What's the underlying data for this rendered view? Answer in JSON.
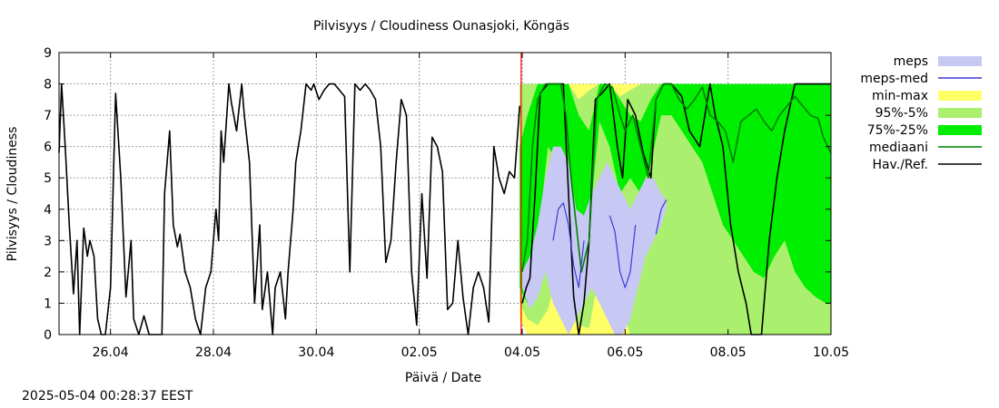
{
  "timestamp": "2025-05-04 00:28:37 EEST",
  "chart_data": {
    "type": "line",
    "title": "Pilvisyys / Cloudiness Ounasjoki, Köngäs",
    "xlabel": "Päivä / Date",
    "ylabel": "Pilvisyys / Cloudiness",
    "xlim": [
      0,
      15
    ],
    "ylim": [
      0,
      9
    ],
    "x_unit": "days since 2025-04-25 00:00",
    "grid": true,
    "legend_position": "right",
    "x_ticks": [
      {
        "x": 1,
        "label": "26.04"
      },
      {
        "x": 3,
        "label": "28.04"
      },
      {
        "x": 5,
        "label": "30.04"
      },
      {
        "x": 7,
        "label": "02.05"
      },
      {
        "x": 9,
        "label": "04.05"
      },
      {
        "x": 11,
        "label": "06.05"
      },
      {
        "x": 13,
        "label": "08.05"
      },
      {
        "x": 15,
        "label": "10.05"
      }
    ],
    "y_ticks": [
      {
        "y": 0,
        "label": "0"
      },
      {
        "y": 1,
        "label": "1"
      },
      {
        "y": 2,
        "label": "2"
      },
      {
        "y": 3,
        "label": "3"
      },
      {
        "y": 4,
        "label": "4"
      },
      {
        "y": 5,
        "label": "5"
      },
      {
        "y": 6,
        "label": "6"
      },
      {
        "y": 7,
        "label": "7"
      },
      {
        "y": 8,
        "label": "8"
      },
      {
        "y": 9,
        "label": "9"
      }
    ],
    "now_marker": {
      "x": 8.98,
      "color": "#ff0000"
    },
    "legend": [
      {
        "label": "meps",
        "kind": "band",
        "color": "#c8c8f5"
      },
      {
        "label": "meps-med",
        "kind": "line",
        "color": "#3c3cd2"
      },
      {
        "label": "min-max",
        "kind": "band",
        "color": "#ffff66"
      },
      {
        "label": "95%-5%",
        "kind": "band",
        "color": "#aaf06e"
      },
      {
        "label": "75%-25%",
        "kind": "band",
        "color": "#00ee00"
      },
      {
        "label": "mediaani",
        "kind": "line",
        "color": "#008000"
      },
      {
        "label": "Hav./Ref.",
        "kind": "line",
        "color": "#000000"
      }
    ],
    "series": [
      {
        "name": "Hav./Ref.",
        "color": "#000000",
        "x": [
          0,
          0.05,
          0.12,
          0.2,
          0.28,
          0.35,
          0.4,
          0.48,
          0.55,
          0.6,
          0.68,
          0.75,
          0.82,
          0.9,
          1.0,
          1.1,
          1.2,
          1.3,
          1.4,
          1.45,
          1.55,
          1.65,
          1.75,
          1.8,
          1.9,
          2.0,
          2.05,
          2.15,
          2.22,
          2.3,
          2.35,
          2.45,
          2.55,
          2.65,
          2.75,
          2.85,
          2.95,
          3.05,
          3.1,
          3.15,
          3.2,
          3.3,
          3.35,
          3.45,
          3.55,
          3.6,
          3.7,
          3.8,
          3.9,
          3.95,
          4.05,
          4.15,
          4.2,
          4.3,
          4.4,
          4.45,
          4.55,
          4.6,
          4.7,
          4.8,
          4.9,
          4.95,
          5.05,
          5.15,
          5.25,
          5.35,
          5.45,
          5.55,
          5.65,
          5.75,
          5.85,
          5.95,
          6.05,
          6.15,
          6.25,
          6.35,
          6.45,
          6.55,
          6.65,
          6.75,
          6.85,
          6.95,
          7.05,
          7.15,
          7.25,
          7.35,
          7.45,
          7.55,
          7.65,
          7.75,
          7.85,
          7.95,
          8.05,
          8.15,
          8.25,
          8.35,
          8.45,
          8.55,
          8.65,
          8.75,
          8.85,
          8.95
        ],
        "values": [
          5.8,
          8.0,
          6.0,
          3.5,
          1.3,
          3.0,
          0.0,
          3.4,
          2.5,
          3.0,
          2.5,
          0.5,
          0.0,
          0.0,
          1.5,
          7.7,
          5.0,
          1.2,
          3.0,
          0.5,
          0.0,
          0.6,
          0.0,
          0.0,
          0.0,
          0.0,
          4.5,
          6.5,
          3.5,
          2.8,
          3.2,
          2.0,
          1.5,
          0.5,
          0.0,
          1.5,
          2.0,
          4.0,
          3.0,
          6.5,
          5.5,
          8.0,
          7.4,
          6.5,
          8.0,
          7.0,
          5.5,
          1.0,
          3.5,
          0.8,
          2.0,
          0.0,
          1.5,
          2.0,
          0.5,
          2.0,
          4.0,
          5.5,
          6.5,
          8.0,
          7.8,
          8.0,
          7.5,
          7.8,
          8.0,
          8.0,
          7.8,
          7.6,
          2.0,
          8.0,
          7.8,
          8.0,
          7.8,
          7.5,
          6.0,
          2.3,
          3.0,
          5.5,
          7.5,
          7.0,
          2.0,
          0.3,
          4.5,
          1.8,
          6.3,
          6.0,
          5.2,
          0.8,
          1.0,
          3.0,
          1.2,
          0.0,
          1.5,
          2.0,
          1.5,
          0.4,
          6.0,
          5.0,
          4.5,
          5.2,
          5.0,
          7.3
        ]
      },
      {
        "name": "Hav./Ref. (forecast)",
        "color": "#000000",
        "x": [
          9.0,
          9.08,
          9.15,
          9.25,
          9.35,
          9.5,
          9.65,
          9.8,
          9.9,
          10.0,
          10.1,
          10.2,
          10.3,
          10.42,
          10.55,
          10.7,
          10.85,
          10.95,
          11.05,
          11.2,
          11.35,
          11.5,
          11.6,
          11.75,
          11.9,
          12.1,
          12.25,
          12.45,
          12.65,
          12.75,
          12.9,
          13.05,
          13.2,
          13.35,
          13.45,
          13.55,
          13.65,
          13.8,
          13.95,
          14.1,
          14.3,
          14.5,
          14.6,
          14.7,
          14.8,
          14.9,
          14.95,
          15.0
        ],
        "values": [
          1.0,
          1.5,
          1.8,
          4.5,
          7.7,
          8.0,
          8.0,
          8.0,
          4.5,
          1.2,
          0.0,
          1.0,
          3.0,
          7.5,
          7.7,
          8.0,
          6.0,
          5.0,
          7.5,
          7.0,
          5.8,
          5.0,
          7.5,
          8.0,
          8.0,
          7.6,
          6.5,
          6.0,
          8.0,
          7.0,
          6.0,
          3.5,
          2.0,
          1.0,
          0.0,
          0.0,
          0.0,
          3.0,
          5.0,
          6.5,
          8.0,
          8.0,
          8.0,
          8.0,
          8.0,
          8.0,
          8.0,
          8.0
        ]
      },
      {
        "name": "mediaani",
        "color": "#008000",
        "x": [
          9.0,
          9.1,
          9.2,
          9.3,
          9.45,
          9.6,
          9.75,
          9.85,
          9.95,
          10.05,
          10.15,
          10.3,
          10.45,
          10.6,
          10.75,
          10.9,
          11.0,
          11.15,
          11.3,
          11.45,
          11.6,
          11.75,
          11.9,
          12.05,
          12.2,
          12.35,
          12.5,
          12.65,
          12.8,
          12.95,
          13.1,
          13.25,
          13.4,
          13.55,
          13.7,
          13.85,
          14.0,
          14.15,
          14.3,
          14.45,
          14.6,
          14.75,
          14.85,
          15.0
        ],
        "values": [
          2.0,
          3.0,
          6.0,
          7.5,
          8.0,
          8.0,
          8.0,
          7.0,
          5.0,
          3.5,
          2.0,
          3.0,
          7.5,
          8.0,
          7.9,
          7.0,
          6.5,
          7.0,
          6.0,
          5.0,
          7.5,
          8.0,
          8.0,
          7.5,
          7.2,
          7.5,
          7.9,
          7.0,
          6.8,
          6.5,
          5.5,
          6.8,
          7.0,
          7.2,
          6.8,
          6.5,
          7.0,
          7.3,
          7.6,
          7.3,
          7.0,
          6.9,
          6.3,
          5.8
        ]
      },
      {
        "name": "meps-med",
        "color": "#3c3cd2",
        "x": [
          9.0,
          9.1,
          9.2,
          9.3,
          9.45,
          9.6,
          9.7,
          9.8,
          9.9,
          10.0,
          10.1,
          10.2,
          10.3,
          10.4,
          10.5,
          10.6,
          10.7,
          10.8,
          10.9,
          11.0,
          11.1,
          11.2,
          11.3,
          11.4,
          11.5,
          11.6,
          11.7,
          11.8
        ],
        "values": [
          null,
          null,
          null,
          null,
          null,
          3.0,
          4.0,
          4.2,
          3.5,
          2.2,
          1.5,
          3.0,
          null,
          null,
          null,
          null,
          3.8,
          3.3,
          2.0,
          1.5,
          2.0,
          3.5,
          null,
          null,
          null,
          3.2,
          4.0,
          4.3
        ]
      }
    ],
    "bands": [
      {
        "name": "min-max",
        "color": "#ffff66",
        "x": [
          8.95,
          9.1,
          9.3,
          9.5,
          9.7,
          9.9,
          10.1,
          10.3,
          10.5,
          10.7,
          10.9,
          11.1,
          11.3,
          11.5,
          11.7,
          11.9,
          12.1,
          12.3,
          12.5,
          12.7,
          12.9,
          13.1,
          13.3,
          13.5,
          13.7,
          13.9,
          14.1,
          14.3,
          14.5,
          14.7,
          14.9,
          15.0
        ],
        "low": [
          0.5,
          0.0,
          0.0,
          0.0,
          0.0,
          0.0,
          0.0,
          0.0,
          0.0,
          0.0,
          0.0,
          0.0,
          0.0,
          0.0,
          0.0,
          0.0,
          0.0,
          0.0,
          0.0,
          0.0,
          0.0,
          0.0,
          0.0,
          0.0,
          0.0,
          0.0,
          0.0,
          0.0,
          0.0,
          0.0,
          0.0,
          0.0
        ],
        "high": [
          8.0,
          8.0,
          8.0,
          8.0,
          8.0,
          8.0,
          8.0,
          8.0,
          8.0,
          8.0,
          8.0,
          8.0,
          8.0,
          8.0,
          8.0,
          8.0,
          8.0,
          8.0,
          8.0,
          8.0,
          8.0,
          8.0,
          8.0,
          8.0,
          8.0,
          8.0,
          8.0,
          8.0,
          8.0,
          8.0,
          8.0,
          8.0
        ]
      },
      {
        "name": "95%-5%",
        "color": "#aaf06e",
        "x": [
          8.95,
          9.1,
          9.3,
          9.5,
          9.7,
          9.9,
          10.1,
          10.3,
          10.5,
          10.7,
          10.9,
          11.1,
          11.3,
          11.5,
          11.7,
          11.9,
          12.1,
          12.3,
          12.5,
          12.7,
          12.9,
          13.1,
          13.3,
          13.5,
          13.7,
          13.9,
          14.1,
          14.3,
          14.5,
          14.7,
          14.9,
          15.0
        ],
        "low": [
          1.0,
          0.5,
          0.3,
          0.8,
          2.0,
          1.5,
          0.3,
          0.2,
          2.0,
          3.0,
          1.0,
          0.0,
          0.0,
          0.0,
          0.0,
          0.0,
          0.0,
          0.0,
          0.0,
          0.0,
          0.0,
          0.0,
          0.0,
          0.0,
          0.0,
          0.0,
          0.0,
          0.0,
          0.0,
          0.0,
          0.0,
          0.0
        ],
        "high": [
          8.0,
          8.0,
          8.0,
          8.0,
          8.0,
          8.0,
          7.5,
          7.8,
          8.0,
          8.0,
          7.6,
          7.8,
          8.0,
          8.0,
          8.0,
          8.0,
          8.0,
          8.0,
          8.0,
          8.0,
          8.0,
          8.0,
          8.0,
          8.0,
          8.0,
          8.0,
          8.0,
          8.0,
          8.0,
          8.0,
          8.0,
          8.0
        ]
      },
      {
        "name": "75%-25%",
        "color": "#00ee00",
        "x": [
          8.95,
          9.1,
          9.3,
          9.5,
          9.7,
          9.9,
          10.1,
          10.3,
          10.5,
          10.7,
          10.9,
          11.1,
          11.3,
          11.5,
          11.7,
          11.9,
          12.1,
          12.3,
          12.5,
          12.7,
          12.9,
          13.1,
          13.3,
          13.5,
          13.7,
          13.9,
          14.1,
          14.3,
          14.5,
          14.7,
          14.9,
          15.0
        ],
        "low": [
          1.5,
          1.0,
          3.0,
          6.0,
          5.5,
          4.0,
          2.0,
          3.5,
          6.8,
          6.0,
          4.5,
          5.0,
          4.5,
          5.5,
          7.0,
          7.0,
          6.5,
          6.0,
          5.5,
          4.5,
          3.5,
          3.0,
          2.5,
          2.0,
          1.8,
          2.5,
          3.0,
          2.0,
          1.5,
          1.2,
          1.0,
          1.0
        ],
        "high": [
          6.0,
          7.0,
          8.0,
          8.0,
          8.0,
          8.0,
          7.0,
          6.5,
          8.0,
          8.0,
          7.5,
          7.0,
          6.8,
          7.5,
          8.0,
          8.0,
          8.0,
          8.0,
          8.0,
          8.0,
          8.0,
          8.0,
          8.0,
          8.0,
          8.0,
          8.0,
          8.0,
          8.0,
          8.0,
          8.0,
          8.0,
          8.0
        ]
      },
      {
        "name": "meps",
        "color": "#c8c8f5",
        "x": [
          9.0,
          9.15,
          9.3,
          9.45,
          9.6,
          9.75,
          9.9,
          10.05,
          10.2,
          10.35,
          10.5,
          10.65,
          10.8,
          10.95,
          11.1,
          11.25,
          11.4,
          11.55,
          11.7,
          11.8
        ],
        "low": [
          1.5,
          0.8,
          1.2,
          2.0,
          1.0,
          0.5,
          0.0,
          0.5,
          1.0,
          1.5,
          1.0,
          0.5,
          0.0,
          0.0,
          0.5,
          1.5,
          2.5,
          3.0,
          3.5,
          4.0
        ],
        "high": [
          2.0,
          2.5,
          3.5,
          5.0,
          6.0,
          6.0,
          5.5,
          4.0,
          3.8,
          4.5,
          5.0,
          5.5,
          5.0,
          4.5,
          4.0,
          4.5,
          5.0,
          5.0,
          4.5,
          4.3
        ]
      }
    ]
  }
}
